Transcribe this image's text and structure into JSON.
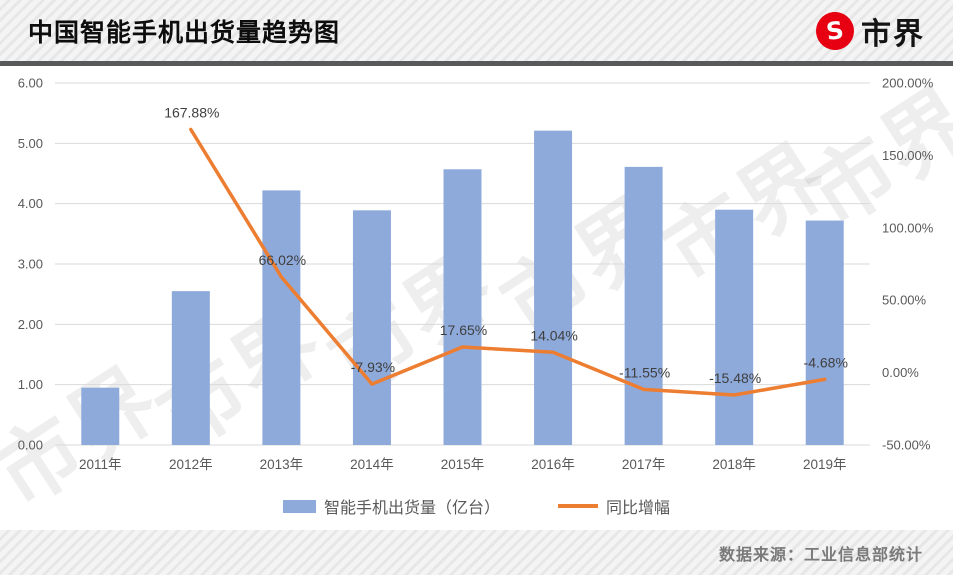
{
  "header": {
    "title": "中国智能手机出货量趋势图",
    "logo_glyph": "S",
    "logo_text": "市界"
  },
  "watermark": {
    "text": "市界"
  },
  "footer": {
    "source": "数据来源：工业信息部统计"
  },
  "chart_data": {
    "type": "bar",
    "subtype": "bar+line combo, dual axis",
    "categories": [
      "2011年",
      "2012年",
      "2013年",
      "2014年",
      "2015年",
      "2016年",
      "2017年",
      "2018年",
      "2019年"
    ],
    "series": [
      {
        "name": "智能手机出货量（亿台）",
        "type": "bar",
        "axis": "left",
        "color": "#8EAADB",
        "values": [
          0.95,
          2.55,
          4.22,
          3.89,
          4.57,
          5.21,
          4.61,
          3.9,
          3.72
        ]
      },
      {
        "name": "同比增幅",
        "type": "line",
        "axis": "right",
        "color": "#ED7D31",
        "values": [
          null,
          167.88,
          66.02,
          -7.93,
          17.65,
          14.04,
          -11.55,
          -15.48,
          -4.68
        ],
        "point_labels": [
          "",
          "167.88%",
          "66.02%",
          "-7.93%",
          "17.65%",
          "14.04%",
          "-11.55%",
          "-15.48%",
          "-4.68%"
        ]
      }
    ],
    "left_axis": {
      "min": 0,
      "max": 6,
      "step": 1,
      "ticks": [
        "0.00",
        "1.00",
        "2.00",
        "3.00",
        "4.00",
        "5.00",
        "6.00"
      ]
    },
    "right_axis": {
      "min": -50,
      "max": 200,
      "step": 50,
      "ticks_top_down": [
        "200.00%",
        "150.00%",
        "100.00%",
        "50.00%",
        "0.00%",
        "-50.00%"
      ]
    },
    "grid": true,
    "legend_position": "bottom",
    "colors": {
      "grid": "#d9d9d9",
      "tick_text": "#595959",
      "data_label_text": "#3f3f3f"
    }
  }
}
